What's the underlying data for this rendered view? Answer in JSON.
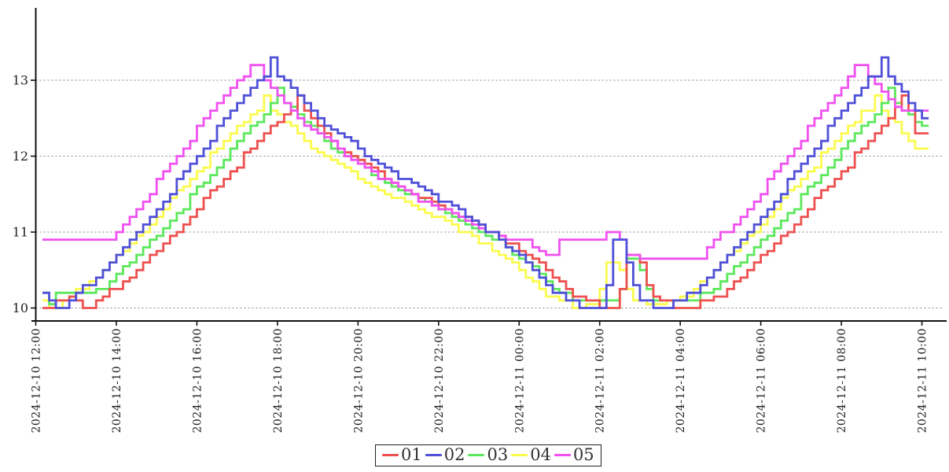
{
  "chart_data": {
    "type": "line",
    "subtype": "step",
    "title": "",
    "xlabel": "",
    "ylabel": "",
    "grid": "horizontal-dashed",
    "legend_position": "bottom-center",
    "x_start": "2024-12-10 12:10",
    "x_interval_minutes": 10,
    "x_tick_labels": [
      "2024-12-10 12:00",
      "2024-12-10 14:00",
      "2024-12-10 16:00",
      "2024-12-10 18:00",
      "2024-12-10 20:00",
      "2024-12-10 22:00",
      "2024-12-11 00:00",
      "2024-12-11 02:00",
      "2024-12-11 04:00",
      "2024-12-11 06:00",
      "2024-12-11 08:00",
      "2024-12-11 10:00"
    ],
    "x_tick_interval_hours": 2,
    "y_ticks": [
      10,
      11,
      12,
      13
    ],
    "ylim": [
      9.83,
      13.95
    ],
    "axis_color": "#111111",
    "grid_color": "#888888",
    "text_color": "#222222",
    "series": [
      {
        "name": "01",
        "color": "#ee5050",
        "values": [
          10.0,
          10.0,
          10.1,
          10.1,
          10.15,
          10.1,
          10.0,
          10.0,
          10.1,
          10.15,
          10.25,
          10.25,
          10.35,
          10.4,
          10.5,
          10.6,
          10.7,
          10.75,
          10.85,
          10.95,
          11.0,
          11.1,
          11.2,
          11.3,
          11.45,
          11.55,
          11.6,
          11.7,
          11.8,
          11.85,
          12.05,
          12.1,
          12.2,
          12.3,
          12.4,
          12.45,
          12.55,
          12.6,
          12.8,
          12.6,
          12.5,
          12.4,
          12.3,
          12.2,
          12.1,
          12.05,
          12.0,
          11.95,
          11.9,
          11.85,
          11.8,
          11.7,
          11.65,
          11.6,
          11.55,
          11.5,
          11.45,
          11.45,
          11.4,
          11.35,
          11.3,
          11.25,
          11.2,
          11.2,
          11.15,
          11.1,
          11.0,
          11.0,
          10.95,
          10.85,
          10.85,
          10.75,
          10.7,
          10.65,
          10.6,
          10.5,
          10.4,
          10.35,
          10.25,
          10.15,
          10.15,
          10.1,
          10.1,
          10.0,
          10.0,
          10.0,
          10.25,
          10.7,
          10.7,
          10.6,
          10.3,
          10.15,
          10.1,
          10.1,
          10.0,
          10.0,
          10.0,
          10.0,
          10.1,
          10.1,
          10.15,
          10.15,
          10.25,
          10.35,
          10.4,
          10.5,
          10.6,
          10.7,
          10.75,
          10.85,
          10.95,
          11.0,
          11.1,
          11.2,
          11.3,
          11.45,
          11.55,
          11.6,
          11.7,
          11.8,
          11.85,
          12.05,
          12.1,
          12.2,
          12.3,
          12.4,
          12.5,
          12.65,
          12.8,
          12.6,
          12.3,
          12.3
        ]
      },
      {
        "name": "02",
        "color": "#5050d8",
        "values": [
          10.2,
          10.1,
          10.0,
          10.0,
          10.1,
          10.2,
          10.3,
          10.3,
          10.4,
          10.5,
          10.6,
          10.7,
          10.8,
          10.9,
          11.0,
          11.1,
          11.2,
          11.3,
          11.4,
          11.5,
          11.7,
          11.8,
          11.9,
          12.0,
          12.1,
          12.2,
          12.4,
          12.5,
          12.6,
          12.7,
          12.8,
          12.9,
          13.0,
          13.05,
          13.3,
          13.05,
          13.0,
          12.9,
          12.8,
          12.7,
          12.6,
          12.5,
          12.4,
          12.35,
          12.3,
          12.25,
          12.2,
          12.1,
          12.0,
          11.95,
          11.9,
          11.85,
          11.8,
          11.7,
          11.7,
          11.65,
          11.6,
          11.55,
          11.5,
          11.4,
          11.4,
          11.35,
          11.3,
          11.2,
          11.15,
          11.1,
          11.0,
          11.0,
          10.9,
          10.8,
          10.75,
          10.7,
          10.6,
          10.5,
          10.4,
          10.3,
          10.2,
          10.2,
          10.1,
          10.1,
          10.0,
          10.0,
          10.0,
          10.0,
          10.3,
          10.9,
          10.9,
          10.6,
          10.3,
          10.1,
          10.1,
          10.0,
          10.0,
          10.0,
          10.1,
          10.1,
          10.2,
          10.2,
          10.3,
          10.4,
          10.5,
          10.6,
          10.7,
          10.8,
          10.9,
          11.0,
          11.1,
          11.2,
          11.3,
          11.4,
          11.5,
          11.7,
          11.8,
          11.9,
          12.0,
          12.1,
          12.2,
          12.4,
          12.5,
          12.6,
          12.7,
          12.8,
          12.9,
          13.05,
          13.05,
          13.3,
          13.05,
          12.95,
          12.85,
          12.7,
          12.6,
          12.5
        ]
      },
      {
        "name": "03",
        "color": "#5ce85c",
        "values": [
          10.2,
          10.05,
          10.2,
          10.2,
          10.2,
          10.2,
          10.2,
          10.2,
          10.25,
          10.25,
          10.35,
          10.45,
          10.55,
          10.6,
          10.7,
          10.8,
          10.9,
          10.95,
          11.05,
          11.15,
          11.25,
          11.3,
          11.5,
          11.6,
          11.65,
          11.75,
          11.85,
          11.95,
          12.1,
          12.2,
          12.3,
          12.4,
          12.45,
          12.55,
          12.7,
          12.9,
          12.7,
          12.65,
          12.55,
          12.45,
          12.4,
          12.3,
          12.2,
          12.1,
          12.05,
          12.0,
          12.0,
          11.95,
          11.85,
          11.75,
          11.7,
          11.65,
          11.6,
          11.55,
          11.5,
          11.5,
          11.45,
          11.4,
          11.35,
          11.3,
          11.25,
          11.2,
          11.15,
          11.1,
          11.05,
          11.0,
          10.95,
          10.9,
          10.9,
          10.8,
          10.7,
          10.65,
          10.6,
          10.55,
          10.45,
          10.35,
          10.25,
          10.2,
          10.2,
          10.1,
          10.1,
          10.1,
          10.1,
          10.1,
          10.1,
          10.1,
          10.25,
          10.65,
          10.65,
          10.5,
          10.25,
          10.1,
          10.1,
          10.1,
          10.1,
          10.1,
          10.1,
          10.1,
          10.2,
          10.2,
          10.25,
          10.35,
          10.45,
          10.55,
          10.6,
          10.7,
          10.8,
          10.9,
          10.95,
          11.05,
          11.15,
          11.25,
          11.3,
          11.5,
          11.6,
          11.65,
          11.75,
          11.85,
          11.95,
          12.1,
          12.2,
          12.3,
          12.4,
          12.45,
          12.55,
          12.7,
          12.9,
          12.7,
          12.6,
          12.55,
          12.45,
          12.4
        ]
      },
      {
        "name": "04",
        "color": "#fbfb4e",
        "values": [
          10.1,
          10.0,
          10.0,
          10.1,
          10.15,
          10.25,
          10.25,
          10.35,
          10.4,
          10.5,
          10.6,
          10.7,
          10.75,
          10.85,
          10.95,
          11.0,
          11.1,
          11.2,
          11.3,
          11.45,
          11.55,
          11.6,
          11.7,
          11.8,
          11.85,
          12.05,
          12.1,
          12.2,
          12.3,
          12.4,
          12.45,
          12.55,
          12.6,
          12.8,
          12.6,
          12.55,
          12.45,
          12.4,
          12.3,
          12.2,
          12.1,
          12.05,
          12.0,
          11.95,
          11.9,
          11.85,
          11.8,
          11.7,
          11.65,
          11.6,
          11.55,
          11.5,
          11.45,
          11.45,
          11.4,
          11.35,
          11.3,
          11.25,
          11.2,
          11.2,
          11.15,
          11.1,
          11.0,
          11.0,
          10.95,
          10.85,
          10.85,
          10.75,
          10.7,
          10.65,
          10.6,
          10.5,
          10.4,
          10.35,
          10.25,
          10.15,
          10.15,
          10.1,
          10.1,
          10.0,
          10.0,
          10.05,
          10.05,
          10.25,
          10.6,
          10.6,
          10.5,
          10.25,
          10.1,
          10.1,
          10.05,
          10.05,
          10.05,
          10.1,
          10.1,
          10.15,
          10.15,
          10.25,
          10.35,
          10.4,
          10.5,
          10.6,
          10.7,
          10.75,
          10.85,
          10.95,
          11.0,
          11.1,
          11.2,
          11.3,
          11.45,
          11.55,
          11.6,
          11.7,
          11.8,
          11.85,
          12.05,
          12.1,
          12.2,
          12.3,
          12.4,
          12.45,
          12.6,
          12.6,
          12.8,
          12.6,
          12.5,
          12.45,
          12.3,
          12.2,
          12.1,
          12.1
        ]
      },
      {
        "name": "05",
        "color": "#f051f0",
        "values": [
          10.9,
          10.9,
          10.9,
          10.9,
          10.9,
          10.9,
          10.9,
          10.9,
          10.9,
          10.9,
          10.9,
          11.0,
          11.1,
          11.2,
          11.3,
          11.4,
          11.5,
          11.7,
          11.8,
          11.9,
          12.0,
          12.1,
          12.2,
          12.4,
          12.5,
          12.6,
          12.7,
          12.8,
          12.9,
          13.0,
          13.05,
          13.2,
          13.2,
          13.0,
          12.9,
          12.8,
          12.7,
          12.6,
          12.5,
          12.4,
          12.35,
          12.3,
          12.25,
          12.2,
          12.1,
          12.0,
          11.95,
          11.9,
          11.85,
          11.8,
          11.7,
          11.7,
          11.65,
          11.6,
          11.55,
          11.5,
          11.4,
          11.4,
          11.35,
          11.3,
          11.3,
          11.25,
          11.2,
          11.15,
          11.1,
          11.05,
          11.0,
          11.0,
          10.95,
          10.9,
          10.9,
          10.9,
          10.9,
          10.8,
          10.75,
          10.7,
          10.7,
          10.9,
          10.9,
          10.9,
          10.9,
          10.9,
          10.9,
          10.9,
          11.0,
          11.0,
          10.9,
          10.7,
          10.7,
          10.65,
          10.65,
          10.65,
          10.65,
          10.65,
          10.65,
          10.65,
          10.65,
          10.65,
          10.65,
          10.8,
          10.9,
          11.0,
          11.0,
          11.1,
          11.2,
          11.3,
          11.4,
          11.5,
          11.7,
          11.8,
          11.9,
          12.0,
          12.1,
          12.2,
          12.4,
          12.5,
          12.6,
          12.7,
          12.8,
          12.9,
          13.05,
          13.2,
          13.2,
          13.05,
          12.95,
          12.85,
          12.75,
          12.65,
          12.6,
          12.6,
          12.6,
          12.6
        ]
      }
    ],
    "legend": {
      "labels": [
        "01",
        "02",
        "03",
        "04",
        "05"
      ]
    }
  }
}
